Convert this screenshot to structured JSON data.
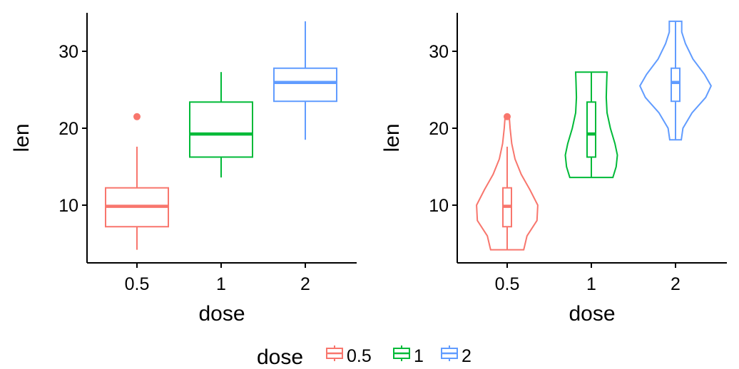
{
  "chart_data": [
    {
      "type": "boxplot",
      "xlabel": "dose",
      "ylabel": "len",
      "categories": [
        "0.5",
        "1",
        "2"
      ],
      "ylim": [
        2.5,
        35
      ],
      "yticks": [
        10,
        20,
        30
      ],
      "grid": false,
      "series": [
        {
          "category": "0.5",
          "color": "#F8766D",
          "min": 4.2,
          "q1": 7.2,
          "median": 9.85,
          "q3": 12.25,
          "max": 17.6,
          "outliers": [
            21.5
          ]
        },
        {
          "category": "1",
          "color": "#00BA38",
          "min": 13.6,
          "q1": 16.25,
          "median": 19.25,
          "q3": 23.4,
          "max": 27.3,
          "outliers": []
        },
        {
          "category": "2",
          "color": "#619CFF",
          "min": 18.5,
          "q1": 23.5,
          "median": 25.95,
          "q3": 27.8,
          "max": 33.9,
          "outliers": []
        }
      ]
    },
    {
      "type": "violin",
      "xlabel": "dose",
      "ylabel": "len",
      "categories": [
        "0.5",
        "1",
        "2"
      ],
      "ylim": [
        2.5,
        35
      ],
      "yticks": [
        10,
        20,
        30
      ],
      "grid": false,
      "series": [
        {
          "category": "0.5",
          "color": "#F8766D",
          "min": 4.2,
          "q1": 7.2,
          "median": 9.85,
          "q3": 12.25,
          "max": 17.6,
          "outliers": [
            21.5
          ],
          "density": [
            [
              4.2,
              0.4
            ],
            [
              6,
              0.48
            ],
            [
              8,
              0.72
            ],
            [
              10,
              0.74
            ],
            [
              12,
              0.55
            ],
            [
              14,
              0.34
            ],
            [
              16,
              0.19
            ],
            [
              18,
              0.11
            ],
            [
              20,
              0.07
            ],
            [
              21.5,
              0.05
            ]
          ]
        },
        {
          "category": "1",
          "color": "#00BA38",
          "min": 13.6,
          "q1": 16.25,
          "median": 19.25,
          "q3": 23.4,
          "max": 27.3,
          "outliers": [],
          "density": [
            [
              13.6,
              0.52
            ],
            [
              15,
              0.6
            ],
            [
              16.5,
              0.63
            ],
            [
              18,
              0.57
            ],
            [
              20,
              0.46
            ],
            [
              22,
              0.38
            ],
            [
              24,
              0.36
            ],
            [
              26,
              0.37
            ],
            [
              27.3,
              0.38
            ]
          ]
        },
        {
          "category": "2",
          "color": "#619CFF",
          "min": 18.5,
          "q1": 23.5,
          "median": 25.95,
          "q3": 27.8,
          "max": 33.9,
          "outliers": [],
          "density": [
            [
              18.5,
              0.14
            ],
            [
              20,
              0.18
            ],
            [
              22,
              0.4
            ],
            [
              24,
              0.73
            ],
            [
              25.5,
              0.86
            ],
            [
              27,
              0.7
            ],
            [
              29,
              0.42
            ],
            [
              31,
              0.24
            ],
            [
              32.5,
              0.15
            ],
            [
              33.9,
              0.15
            ]
          ]
        }
      ]
    }
  ],
  "legend": {
    "title": "dose",
    "position": "bottom",
    "items": [
      {
        "label": "0.5",
        "color": "#F8766D"
      },
      {
        "label": "1",
        "color": "#00BA38"
      },
      {
        "label": "2",
        "color": "#619CFF"
      }
    ]
  }
}
